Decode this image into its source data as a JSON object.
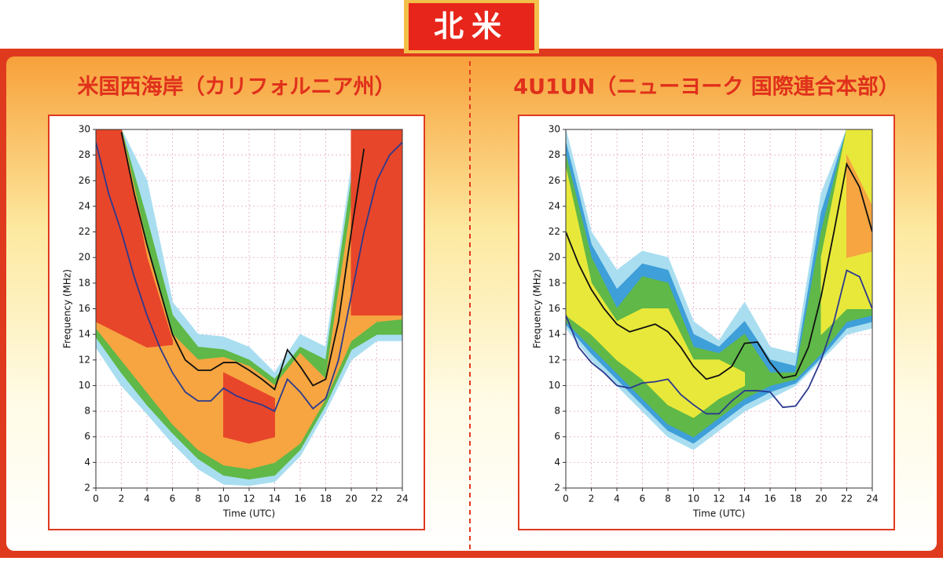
{
  "header": {
    "title": "北米"
  },
  "chart_data": [
    {
      "type": "contour",
      "title": "米国西海岸（カリフォルニア州）",
      "x_label": "Time (UTC)",
      "y_label": "Frequency (MHz)",
      "x": [
        0,
        1,
        2,
        3,
        4,
        5,
        6,
        7,
        8,
        9,
        10,
        11,
        12,
        13,
        14,
        15,
        16,
        17,
        18,
        19,
        20,
        21,
        22,
        23,
        24
      ],
      "band_x": [
        0,
        2,
        4,
        6,
        8,
        10,
        12,
        14,
        16,
        18,
        20,
        22,
        24
      ],
      "xlim": [
        0,
        24
      ],
      "ylim": [
        2,
        30
      ],
      "xticks": [
        0,
        2,
        4,
        6,
        8,
        10,
        12,
        14,
        16,
        18,
        20,
        22,
        24
      ],
      "yticks": [
        2,
        4,
        6,
        8,
        10,
        12,
        14,
        16,
        18,
        20,
        22,
        24,
        26,
        28,
        30
      ],
      "grid": true,
      "bands": [
        {
          "color": "#a9def0",
          "lower": [
            13,
            10,
            7.8,
            5.5,
            3.5,
            2.3,
            2.2,
            2.5,
            4.5,
            8,
            12,
            13.5,
            13.5
          ],
          "upper": [
            30,
            30,
            26,
            16.5,
            14,
            13.8,
            13,
            11,
            14,
            13,
            27,
            30,
            30
          ]
        },
        {
          "color": "#5fb848",
          "lower": [
            13.8,
            11,
            8.5,
            6.3,
            4.3,
            3,
            2.7,
            3,
            5,
            8.5,
            12.8,
            14,
            14
          ],
          "upper": [
            30,
            30,
            23,
            15.5,
            13,
            12.8,
            12,
            10.5,
            13,
            12,
            26,
            30,
            30
          ]
        },
        {
          "color": "#f6a540",
          "lower": [
            14.5,
            12,
            9.5,
            7,
            5,
            3.8,
            3.5,
            4,
            5.5,
            9,
            13.5,
            15,
            15.2
          ],
          "upper": [
            30,
            30,
            21,
            14,
            12,
            12.2,
            11.5,
            10,
            12.5,
            10.5,
            24,
            30,
            30
          ]
        },
        {
          "color": "#e8462a",
          "lower": [
            15,
            14,
            13,
            13.2,
            null,
            6,
            5.5,
            6,
            null,
            null,
            15.5,
            15.5,
            15.5
          ],
          "upper": [
            30,
            30,
            20,
            13.5,
            null,
            11,
            10,
            9,
            null,
            null,
            30,
            30,
            30
          ]
        }
      ],
      "series": [
        {
          "color": "#111111",
          "values": [
            null,
            null,
            29.8,
            25,
            21,
            17.5,
            14,
            12,
            11.2,
            11.2,
            11.8,
            11.8,
            11.2,
            10.5,
            9.7,
            12.8,
            11.5,
            10,
            10.5,
            15,
            22,
            28.5,
            null,
            null,
            null
          ]
        },
        {
          "color": "#2b3a8f",
          "values": [
            29,
            25,
            22,
            18.5,
            15.5,
            13,
            11,
            9.5,
            8.8,
            8.8,
            9.8,
            9.2,
            8.8,
            8.5,
            8,
            10.5,
            9.5,
            8.2,
            9,
            12,
            17,
            22,
            26,
            28,
            29
          ]
        }
      ]
    },
    {
      "type": "contour",
      "title": "4U1UN（ニューヨーク 国際連合本部）",
      "x_label": "Time (UTC)",
      "y_label": "Frequency (MHz)",
      "x": [
        0,
        1,
        2,
        3,
        4,
        5,
        6,
        7,
        8,
        9,
        10,
        11,
        12,
        13,
        14,
        15,
        16,
        17,
        18,
        19,
        20,
        21,
        22,
        23,
        24
      ],
      "band_x": [
        0,
        2,
        4,
        6,
        8,
        10,
        12,
        14,
        16,
        18,
        20,
        22,
        24
      ],
      "xlim": [
        0,
        24
      ],
      "ylim": [
        2,
        30
      ],
      "xticks": [
        0,
        2,
        4,
        6,
        8,
        10,
        12,
        14,
        16,
        18,
        20,
        22,
        24
      ],
      "yticks": [
        2,
        4,
        6,
        8,
        10,
        12,
        14,
        16,
        18,
        20,
        22,
        24,
        26,
        28,
        30
      ],
      "grid": true,
      "bands": [
        {
          "color": "#a9def0",
          "lower": [
            14.5,
            12,
            10,
            8,
            6,
            5,
            6.5,
            8,
            9,
            10,
            12,
            14,
            14.5
          ],
          "upper": [
            30,
            22,
            19,
            20.5,
            20,
            15,
            13.5,
            16.5,
            13,
            12.5,
            25,
            30,
            30
          ]
        },
        {
          "color": "#3f9fd8",
          "lower": [
            14.8,
            12.5,
            10.5,
            8.5,
            6.5,
            5.5,
            7,
            8.5,
            9.5,
            10.2,
            12.2,
            14.5,
            15
          ],
          "upper": [
            29,
            21,
            17.5,
            19.5,
            19,
            14,
            13,
            15,
            12,
            11.5,
            23.5,
            30,
            30
          ]
        },
        {
          "color": "#5fb848",
          "lower": [
            15,
            13,
            11,
            9,
            7,
            6,
            7.5,
            9,
            10,
            10.5,
            12.5,
            15,
            15.5
          ],
          "upper": [
            28,
            20,
            16,
            18.5,
            18,
            13,
            12.5,
            14,
            11,
            11,
            22,
            30,
            30
          ]
        },
        {
          "color": "#e8e83a",
          "lower": [
            15.5,
            14,
            12,
            10.5,
            8.5,
            7.5,
            9,
            10,
            null,
            null,
            14,
            16,
            16
          ],
          "upper": [
            27,
            18,
            15,
            16,
            16,
            12,
            12,
            11,
            null,
            null,
            20,
            30,
            30
          ]
        },
        {
          "color": "#f6a540",
          "lower": [
            null,
            null,
            null,
            null,
            null,
            null,
            null,
            null,
            null,
            null,
            null,
            20,
            20.5
          ],
          "upper": [
            null,
            null,
            null,
            null,
            null,
            null,
            null,
            null,
            null,
            null,
            null,
            28,
            24
          ]
        }
      ],
      "series": [
        {
          "color": "#111111",
          "values": [
            22,
            19.5,
            17.5,
            16,
            14.8,
            14.2,
            14.5,
            14.8,
            14.2,
            13,
            11.5,
            10.5,
            10.8,
            11.5,
            13.3,
            13.4,
            11.8,
            10.6,
            10.8,
            13,
            17,
            22,
            27.3,
            25.5,
            22
          ]
        },
        {
          "color": "#2b3a8f",
          "values": [
            15.5,
            13,
            11.8,
            11,
            10,
            9.8,
            10.2,
            10.3,
            10.5,
            9.3,
            8.5,
            7.8,
            7.8,
            8.8,
            9.6,
            9.6,
            9.5,
            8.3,
            8.4,
            9.8,
            12,
            15,
            19,
            18.5,
            16
          ]
        }
      ]
    }
  ]
}
